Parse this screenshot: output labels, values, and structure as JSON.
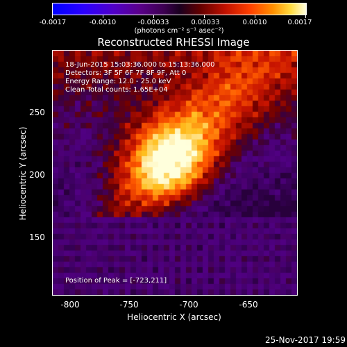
{
  "colorbar": {
    "ticks": [
      "-0.0017",
      "-0.0010",
      "-0.00033",
      "0.00033",
      "0.0010",
      "0.0017"
    ],
    "units": "(photons cm⁻² s⁻¹ asec⁻²)"
  },
  "title": "Reconstructed RHESSI Image",
  "annotations": {
    "time": "18-Jun-2015 15:03:36.000 to 15:13:36.000",
    "detectors": "Detectors: 3F 5F 6F 7F 8F 9F, Att 0",
    "energy": "Energy Range: 12.0 - 25.0 keV",
    "method": "Clean     Total counts: 1.65E+04",
    "peak": "Position of Peak = [-723,211]"
  },
  "axes": {
    "xlabel": "Heliocentric X (arcsec)",
    "ylabel": "Heliocentric Y (arcsec)",
    "xticks": [
      "-800",
      "-750",
      "-700",
      "-650"
    ],
    "yticks": [
      "250",
      "200",
      "150"
    ]
  },
  "image": {
    "peak_x": -723,
    "peak_y": 211,
    "x_range": [
      -820,
      -615
    ],
    "y_range": [
      100,
      305
    ]
  },
  "timestamp": "25-Nov-2017 19:59"
}
